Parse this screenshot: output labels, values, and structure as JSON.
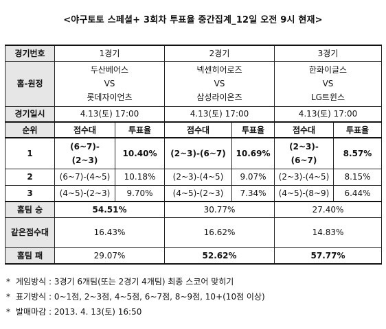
{
  "title": "<야구토토 스페셜+ 3회차 투표율 중간집계_12일 오전 9시 현재>",
  "table": {
    "label_game_no": "경기번호",
    "games": [
      "1경기",
      "2경기",
      "3경기"
    ],
    "label_home_away": "홈-원정",
    "matchups": [
      {
        "home": "두산베어스",
        "vs": "VS",
        "away": "롯데자이언츠"
      },
      {
        "home": "넥센히어로즈",
        "vs": "VS",
        "away": "삼성라이온즈"
      },
      {
        "home": "한화이글스",
        "vs": "VS",
        "away": "LG트윈스"
      }
    ],
    "label_datetime": "경기일시",
    "datetimes": [
      "4.13(토) 17:00",
      "4.13(토) 17:00",
      "4.13(토) 17:00"
    ],
    "label_rank": "순위",
    "col_score": "점수대",
    "col_rate": "투표율",
    "ranks": [
      {
        "rank": "1",
        "cells": [
          {
            "score": "(6~7)-(2~3)",
            "rate": "10.40%"
          },
          {
            "score": "(2~3)-(6~7)",
            "rate": "10.69%"
          },
          {
            "score": "(2~3)-(6~7)",
            "rate": "8.57%"
          }
        ]
      },
      {
        "rank": "2",
        "cells": [
          {
            "score": "(6~7)-(4~5)",
            "rate": "10.18%"
          },
          {
            "score": "(2~3)-(4~5)",
            "rate": "9.07%"
          },
          {
            "score": "(2~3)-(4~5)",
            "rate": "8.15%"
          }
        ]
      },
      {
        "rank": "3",
        "cells": [
          {
            "score": "(4~5)-(2~3)",
            "rate": "9.70%"
          },
          {
            "score": "(4~5)-(2~3)",
            "rate": "7.34%"
          },
          {
            "score": "(4~5)-(8~9)",
            "rate": "6.44%"
          }
        ]
      }
    ],
    "label_home_win": "홈팀 승",
    "home_win": [
      "54.51%",
      "30.77%",
      "27.40%"
    ],
    "label_same_score": "같은점수대",
    "same_score": [
      "16.43%",
      "16.62%",
      "14.83%"
    ],
    "label_home_loss": "홈팀 패",
    "home_loss": [
      "29.07%",
      "52.62%",
      "57.77%"
    ]
  },
  "notes": [
    {
      "mark": "*",
      "text": "게임방식 : 3경기 6개팀(또는 2경기 4개팀) 최종 스코어 맞히기"
    },
    {
      "mark": "*",
      "text": "표기방식 : 0~1점, 2~3점, 4~5점, 6~7점, 8~9점, 10+(10점 이상)"
    },
    {
      "mark": "*",
      "text": "발매마감 : 2013. 4. 13(토) 16:50"
    }
  ]
}
